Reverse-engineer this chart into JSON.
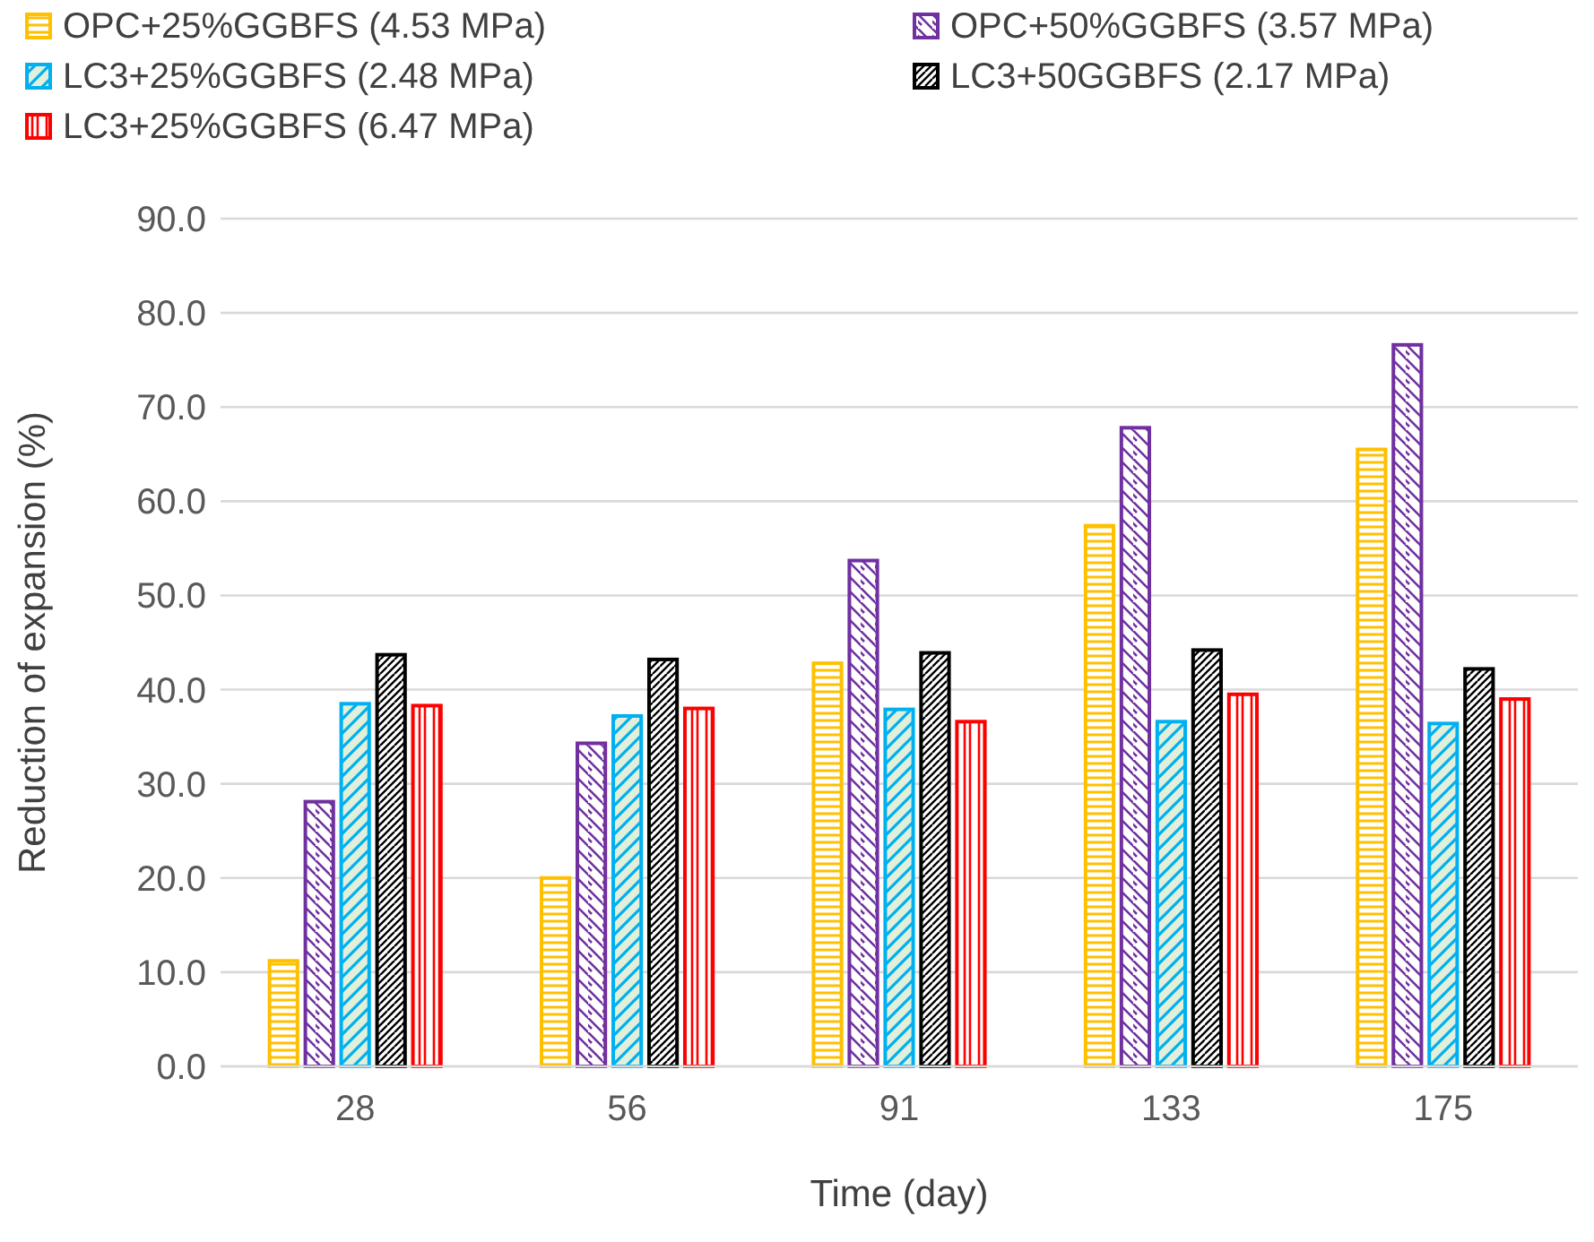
{
  "chart_data": {
    "type": "bar",
    "xlabel": "Time (day)",
    "ylabel": "Reduction of expansion (%)",
    "categories": [
      "28",
      "56",
      "91",
      "133",
      "175"
    ],
    "series": [
      {
        "name": "OPC+25%GGBFS (4.53 MPa)",
        "color": "#ffc000",
        "values": [
          11.2,
          20.0,
          42.8,
          57.4,
          65.5
        ]
      },
      {
        "name": "OPC+50%GGBFS (3.57 MPa)",
        "color": "#7030a0",
        "values": [
          28.1,
          34.3,
          53.7,
          67.8,
          76.6
        ]
      },
      {
        "name": "LC3+25%GGBFS (2.48 MPa)",
        "color": "#00b0f0",
        "values": [
          38.5,
          37.2,
          37.9,
          36.6,
          36.4
        ]
      },
      {
        "name": "LC3+50GGBFS (2.17 MPa)",
        "color": "#000000",
        "values": [
          43.7,
          43.2,
          43.9,
          44.2,
          42.2
        ]
      },
      {
        "name": "LC3+25%GGBFS (6.47 MPa)",
        "color": "#ff0000",
        "values": [
          38.3,
          38.0,
          36.6,
          39.5,
          39.0
        ]
      }
    ],
    "ylim": [
      0,
      90
    ],
    "yticks": [
      {
        "value": 0,
        "label": "0.0"
      },
      {
        "value": 10,
        "label": "10.0"
      },
      {
        "value": 20,
        "label": "20.0"
      },
      {
        "value": 30,
        "label": "30.0"
      },
      {
        "value": 40,
        "label": "40.0"
      },
      {
        "value": 50,
        "label": "50.0"
      },
      {
        "value": 60,
        "label": "60.0"
      },
      {
        "value": 70,
        "label": "70.0"
      },
      {
        "value": 80,
        "label": "80.0"
      },
      {
        "value": 90,
        "label": "90.0"
      }
    ],
    "grid": "y",
    "legend": "top"
  }
}
